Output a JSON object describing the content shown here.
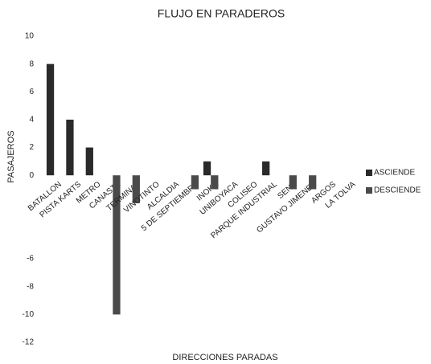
{
  "chart_data": {
    "type": "bar",
    "title": "FLUJO EN PARADEROS",
    "x_label": "DIRECCIONES PARADAS",
    "y_label": "PASAJEROS",
    "categories": [
      "BATALLON",
      "PISTA KARTS",
      "METRO",
      "CANASTA",
      "TERMINAL",
      "VINOTINTO",
      "ALCALDIA",
      "5 DE SEPTIEMBRE",
      "INOKA",
      "UNIBOYACA",
      "COLISEO",
      "PARQUE INDUSTRIAL",
      "SENA",
      "GUSTAVO JIMENEZ",
      "ARGOS",
      "LA TOLVA"
    ],
    "series": [
      {
        "name": "ASCIENDE",
        "color": "#2a2a2a",
        "values": [
          8,
          4,
          2,
          0,
          0,
          0,
          0,
          0,
          1,
          0,
          0,
          1,
          0,
          0,
          0,
          0
        ]
      },
      {
        "name": "DESCIENDE",
        "color": "#4a4a4a",
        "values": [
          0,
          0,
          0,
          -10,
          -2,
          0,
          0,
          -1,
          -1,
          0,
          0,
          0,
          -1,
          -1,
          0,
          0
        ]
      }
    ],
    "ylim": [
      -12,
      10
    ],
    "yticks": [
      -12,
      -10,
      -8,
      -6,
      0,
      2,
      4,
      6,
      8,
      10
    ],
    "grid": false,
    "legend": "right"
  }
}
